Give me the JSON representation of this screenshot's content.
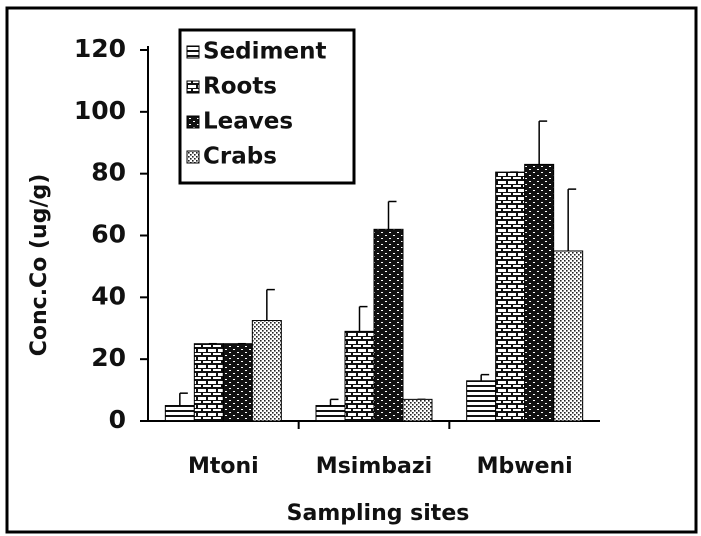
{
  "chart_data": {
    "type": "bar",
    "categories": [
      "Mtoni",
      "Msimbazi",
      "Mbweni"
    ],
    "series": [
      {
        "name": "Sediment",
        "pattern": "stripes",
        "values": [
          5,
          5,
          13
        ],
        "errors": [
          4,
          2,
          2
        ]
      },
      {
        "name": "Roots",
        "pattern": "brick",
        "values": [
          25,
          29,
          80.5
        ],
        "errors": [
          0,
          8,
          0
        ]
      },
      {
        "name": "Leaves",
        "pattern": "darkbrick",
        "values": [
          25,
          62,
          83
        ],
        "errors": [
          0,
          9,
          14
        ]
      },
      {
        "name": "Crabs",
        "pattern": "dots",
        "values": [
          32.5,
          7,
          55
        ],
        "errors": [
          10,
          0,
          20
        ]
      }
    ],
    "ylabel": "Conc.Co    (ug/g)",
    "xlabel": "Sampling  sites",
    "ylim": [
      0,
      120
    ],
    "yticks": [
      0,
      20,
      40,
      60,
      80,
      100,
      120
    ],
    "legend": "upper left",
    "grid": false
  }
}
